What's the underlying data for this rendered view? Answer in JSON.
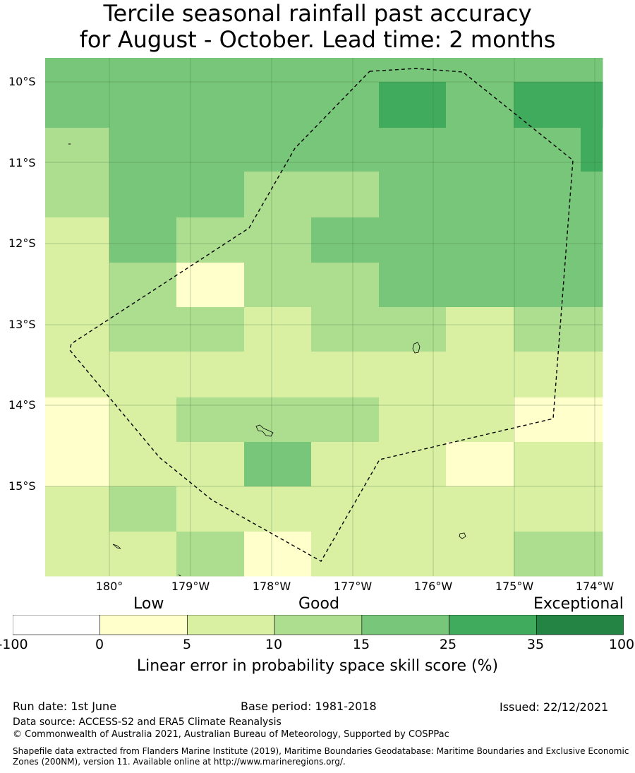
{
  "title": {
    "line1": "Tercile seasonal rainfall past accuracy",
    "line2": "for August - October. Lead time: 2 months"
  },
  "map": {
    "lat_labels": [
      "10°S",
      "11°S",
      "12°S",
      "13°S",
      "14°S",
      "15°S"
    ],
    "lon_labels": [
      "180°",
      "179°W",
      "178°W",
      "177°W",
      "176°W",
      "175°W",
      "174°W"
    ],
    "grid": "on",
    "boundary_style": "dashed",
    "category_colors": [
      "#ffffff",
      "#ffffcc",
      "#d9f0a3",
      "#addd8e",
      "#78c679",
      "#41ab5d",
      "#238443"
    ],
    "cells": [
      [
        4,
        4,
        4,
        4,
        4,
        4,
        4,
        4
      ],
      [
        4,
        4,
        4,
        4,
        4,
        5,
        4,
        5
      ],
      [
        3,
        4,
        4,
        4,
        4,
        4,
        4,
        4
      ],
      [
        3,
        4,
        4,
        3,
        3,
        4,
        4,
        4
      ],
      [
        2,
        4,
        3,
        3,
        4,
        4,
        4,
        4
      ],
      [
        2,
        3,
        1,
        3,
        3,
        4,
        4,
        4
      ],
      [
        2,
        3,
        3,
        2,
        3,
        3,
        2,
        3
      ],
      [
        2,
        2,
        2,
        2,
        2,
        2,
        2,
        2
      ],
      [
        1,
        2,
        3,
        3,
        3,
        2,
        2,
        1
      ],
      [
        1,
        2,
        2,
        4,
        2,
        2,
        1,
        2
      ],
      [
        2,
        3,
        2,
        2,
        2,
        2,
        2,
        2
      ],
      [
        2,
        2,
        3,
        1,
        2,
        2,
        2,
        3
      ]
    ]
  },
  "colorbar": {
    "words": {
      "low": "Low",
      "good": "Good",
      "exceptional": "Exceptional"
    },
    "ticks": [
      "-100",
      "0",
      "5",
      "10",
      "15",
      "25",
      "35",
      "100"
    ],
    "colors": [
      "#ffffff",
      "#ffffcc",
      "#d9f0a3",
      "#addd8e",
      "#78c679",
      "#41ab5d",
      "#238443"
    ],
    "label": "Linear error in probability space skill score (%)"
  },
  "footer": {
    "run_date": "Run date: 1st June",
    "base_period": "Base period: 1981-2018",
    "issued": "Issued: 22/12/2021",
    "data_source": "Data source: ACCESS-S2 and ERA5 Climate Reanalysis",
    "copyright": "© Commonwealth of Australia 2021, Australian Bureau of Meteorology, Supported by COSPPac",
    "shapefile": "Shapefile data extracted from Flanders Marine Institute (2019), Maritime Boundaries Geodatabase: Maritime Boundaries and Exclusive Economic Zones (200NM), version 11. Available online at http://www.marineregions.org/."
  }
}
